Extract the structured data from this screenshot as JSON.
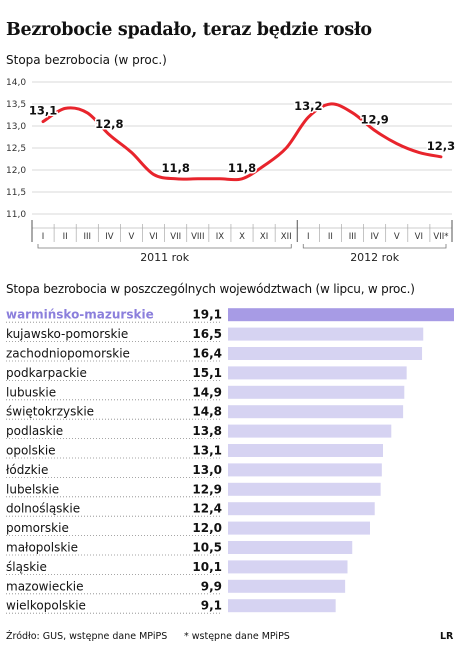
{
  "header": {
    "title": "Bezrobocie spadało, teraz będzie rosło",
    "subtitle": "Stopa bezrobocia (w proc.)",
    "subtitle2": "Stopa bezrobocia w poszczególnych województwach (w lipcu, w proc.)"
  },
  "footer": {
    "source": "Źródło: GUS, wstępne dane MPiPS",
    "note": "* wstępne dane MPiPS",
    "author": "LR"
  },
  "colors": {
    "line": "#e8242c",
    "bar": "#d6d3f2",
    "bar_highlight": "#a79be5",
    "highlight_text": "#8b7fdc",
    "grid": "#cccccc"
  },
  "chart_data": [
    {
      "type": "line",
      "x": [
        "I",
        "II",
        "III",
        "IV",
        "V",
        "VI",
        "VII",
        "VIII",
        "IX",
        "X",
        "XI",
        "XII",
        "I",
        "II",
        "III",
        "IV",
        "V",
        "VI",
        "VII*"
      ],
      "groups": [
        {
          "label": "2011 rok",
          "from": 0,
          "to": 11
        },
        {
          "label": "2012 rok",
          "from": 12,
          "to": 18
        }
      ],
      "values": [
        13.1,
        13.4,
        13.3,
        12.8,
        12.4,
        11.9,
        11.8,
        11.8,
        11.8,
        11.8,
        12.1,
        12.5,
        13.2,
        13.5,
        13.3,
        12.9,
        12.6,
        12.4,
        12.3
      ],
      "data_labels": [
        {
          "index": 0,
          "text": "13,1"
        },
        {
          "index": 3,
          "text": "12,8"
        },
        {
          "index": 6,
          "text": "11,8"
        },
        {
          "index": 9,
          "text": "11,8"
        },
        {
          "index": 12,
          "text": "13,2"
        },
        {
          "index": 15,
          "text": "12,9"
        },
        {
          "index": 18,
          "text": "12,3"
        }
      ],
      "yticks": [
        "14,0",
        "13,5",
        "13,0",
        "12,5",
        "12,0",
        "11,5",
        "11,0"
      ],
      "ylim": [
        11.0,
        14.0
      ],
      "grid": true
    },
    {
      "type": "bar",
      "orientation": "horizontal",
      "categories": [
        "warmińsko-mazurskie",
        "kujawsko-pomorskie",
        "zachodniopomorskie",
        "podkarpackie",
        "lubuskie",
        "świętokrzyskie",
        "podlaskie",
        "opolskie",
        "łódzkie",
        "lubelskie",
        "dolnośląskie",
        "pomorskie",
        "małopolskie",
        "śląskie",
        "mazowieckie",
        "wielkopolskie"
      ],
      "values": [
        19.1,
        16.5,
        16.4,
        15.1,
        14.9,
        14.8,
        13.8,
        13.1,
        13.0,
        12.9,
        12.4,
        12.0,
        10.5,
        10.1,
        9.9,
        9.1
      ],
      "labels": [
        "19,1",
        "16,5",
        "16,4",
        "15,1",
        "14,9",
        "14,8",
        "13,8",
        "13,1",
        "13,0",
        "12,9",
        "12,4",
        "12,0",
        "10,5",
        "10,1",
        "9,9",
        "9,1"
      ],
      "highlight": 0
    }
  ]
}
